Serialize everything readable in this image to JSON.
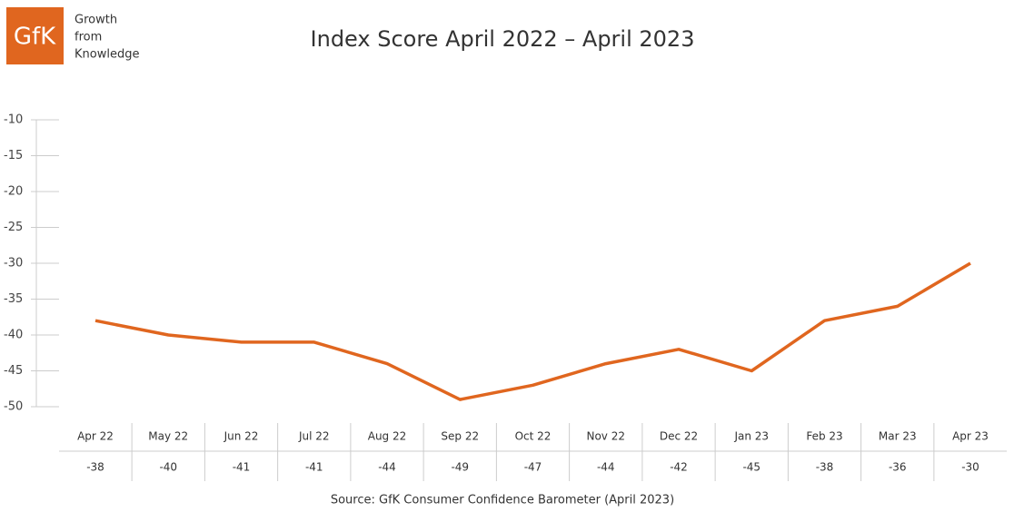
{
  "chart_data": {
    "type": "line",
    "title": "Index Score April 2022 – April 2023",
    "logo": {
      "mark": "GfK",
      "tagline": [
        "Growth",
        "from",
        "Knowledge"
      ]
    },
    "source": "Source: GfK Consumer Confidence Barometer (April 2023)",
    "categories": [
      "Apr 22",
      "May 22",
      "Jun 22",
      "Jul 22",
      "Aug 22",
      "Sep 22",
      "Oct 22",
      "Nov 22",
      "Dec 22",
      "Jan 23",
      "Feb 23",
      "Mar 23",
      "Apr 23"
    ],
    "values": [
      -38,
      -40,
      -41,
      -41,
      -44,
      -49,
      -47,
      -44,
      -42,
      -45,
      -38,
      -36,
      -30
    ],
    "color": "#e0661f",
    "ylim": [
      -50,
      -10
    ],
    "yticks": [
      -10,
      -15,
      -20,
      -25,
      -30,
      -35,
      -40,
      -45,
      -50
    ]
  }
}
